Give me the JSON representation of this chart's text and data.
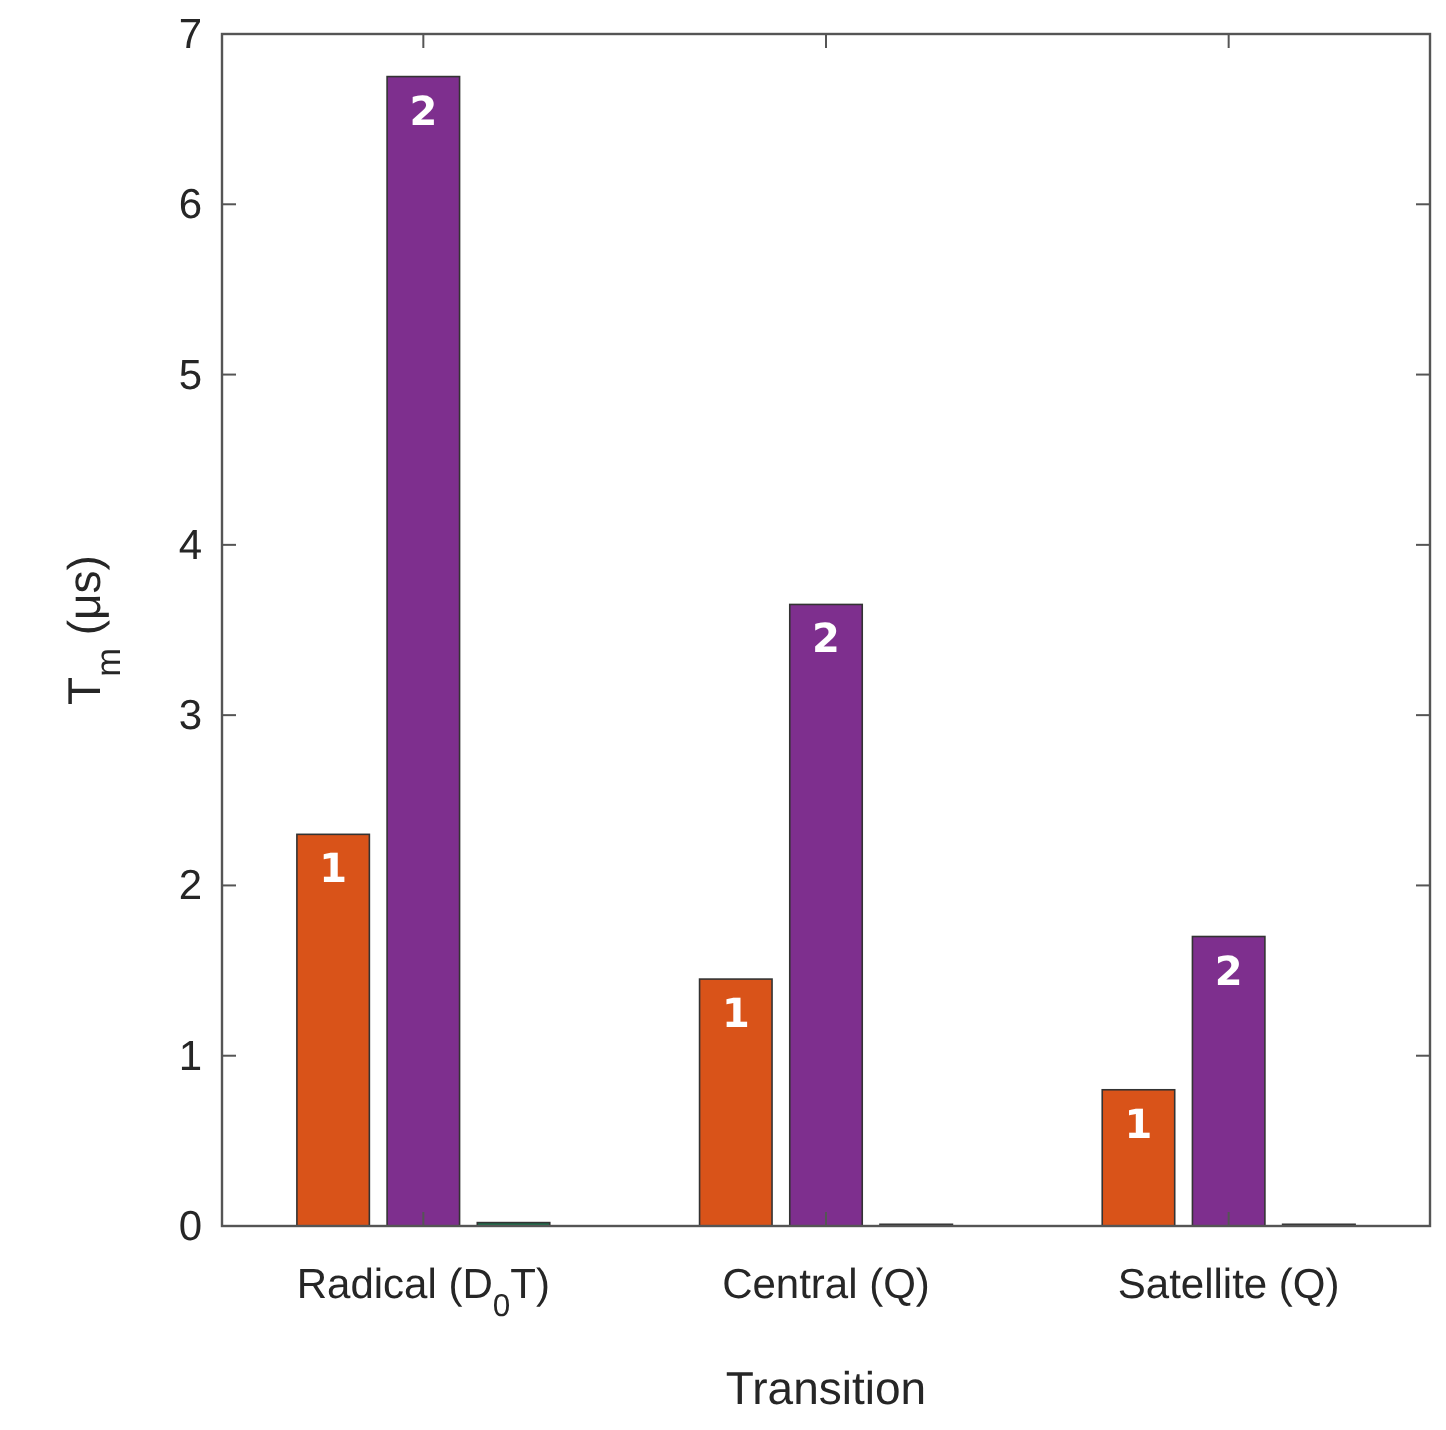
{
  "chart_data": {
    "type": "bar",
    "categories": [
      "Radical (D$_{0}$T)",
      "Central (Q)",
      "Satellite (Q)"
    ],
    "series": [
      {
        "name": "1",
        "color": "#d95319",
        "values": [
          2.3,
          1.45,
          0.8
        ]
      },
      {
        "name": "2",
        "color": "#7e2f8e",
        "values": [
          6.75,
          3.65,
          1.7
        ]
      },
      {
        "color": "#1f6e4c",
        "values": [
          0.02,
          0.01,
          0.01
        ]
      }
    ],
    "xlabel": "Transition",
    "ylabel": "T$_{m}$ (μs)",
    "ylim": [
      0,
      7
    ],
    "yticks": [
      0,
      1,
      2,
      3,
      4,
      5,
      6,
      7
    ]
  }
}
